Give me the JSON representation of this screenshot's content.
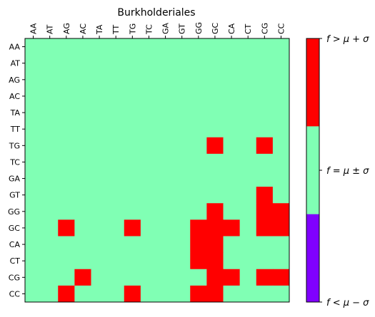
{
  "chart_data": {
    "type": "heatmap",
    "title": "Burkholderiales",
    "x_categories": [
      "AA",
      "AT",
      "AG",
      "AC",
      "TA",
      "TT",
      "TG",
      "TC",
      "GA",
      "GT",
      "GG",
      "GC",
      "CA",
      "CT",
      "CG",
      "CC"
    ],
    "y_categories": [
      "AA",
      "AT",
      "AG",
      "AC",
      "TA",
      "TT",
      "TG",
      "TC",
      "GA",
      "GT",
      "GG",
      "GC",
      "CA",
      "CT",
      "CG",
      "CC"
    ],
    "values": [
      [
        0,
        0,
        0,
        0,
        0,
        0,
        0,
        0,
        0,
        0,
        0,
        0,
        0,
        0,
        0,
        0
      ],
      [
        0,
        0,
        0,
        0,
        0,
        0,
        0,
        0,
        0,
        0,
        0,
        0,
        0,
        0,
        0,
        0
      ],
      [
        0,
        0,
        0,
        0,
        0,
        0,
        0,
        0,
        0,
        0,
        0,
        0,
        0,
        0,
        0,
        0
      ],
      [
        0,
        0,
        0,
        0,
        0,
        0,
        0,
        0,
        0,
        0,
        0,
        0,
        0,
        0,
        0,
        0
      ],
      [
        0,
        0,
        0,
        0,
        0,
        0,
        0,
        0,
        0,
        0,
        0,
        0,
        0,
        0,
        0,
        0
      ],
      [
        0,
        0,
        0,
        0,
        0,
        0,
        0,
        0,
        0,
        0,
        0,
        0,
        0,
        0,
        0,
        0
      ],
      [
        0,
        0,
        0,
        0,
        0,
        0,
        0,
        0,
        0,
        0,
        0,
        1,
        0,
        0,
        1,
        0
      ],
      [
        0,
        0,
        0,
        0,
        0,
        0,
        0,
        0,
        0,
        0,
        0,
        0,
        0,
        0,
        0,
        0
      ],
      [
        0,
        0,
        0,
        0,
        0,
        0,
        0,
        0,
        0,
        0,
        0,
        0,
        0,
        0,
        0,
        0
      ],
      [
        0,
        0,
        0,
        0,
        0,
        0,
        0,
        0,
        0,
        0,
        0,
        0,
        0,
        0,
        1,
        0
      ],
      [
        0,
        0,
        0,
        0,
        0,
        0,
        0,
        0,
        0,
        0,
        0,
        1,
        0,
        0,
        1,
        1
      ],
      [
        0,
        0,
        1,
        0,
        0,
        0,
        1,
        0,
        0,
        0,
        1,
        1,
        1,
        0,
        1,
        1
      ],
      [
        0,
        0,
        0,
        0,
        0,
        0,
        0,
        0,
        0,
        0,
        1,
        1,
        0,
        0,
        0,
        0
      ],
      [
        0,
        0,
        0,
        0,
        0,
        0,
        0,
        0,
        0,
        0,
        1,
        1,
        0,
        0,
        0,
        0
      ],
      [
        0,
        0,
        0,
        1,
        0,
        0,
        0,
        0,
        0,
        0,
        0,
        1,
        1,
        0,
        1,
        1
      ],
      [
        0,
        0,
        1,
        0,
        0,
        0,
        1,
        0,
        0,
        0,
        1,
        1,
        0,
        0,
        0,
        0
      ]
    ],
    "colors": {
      "-1": "#8000ff",
      "0": "#80ffb4",
      "1": "#ff0000"
    },
    "colorbar": {
      "levels": [
        -1,
        0,
        1
      ],
      "tick_labels": [
        "f < μ − σ",
        "f = μ ± σ",
        "f > μ + σ"
      ]
    },
    "x_axis_position": "top",
    "grid": false
  }
}
